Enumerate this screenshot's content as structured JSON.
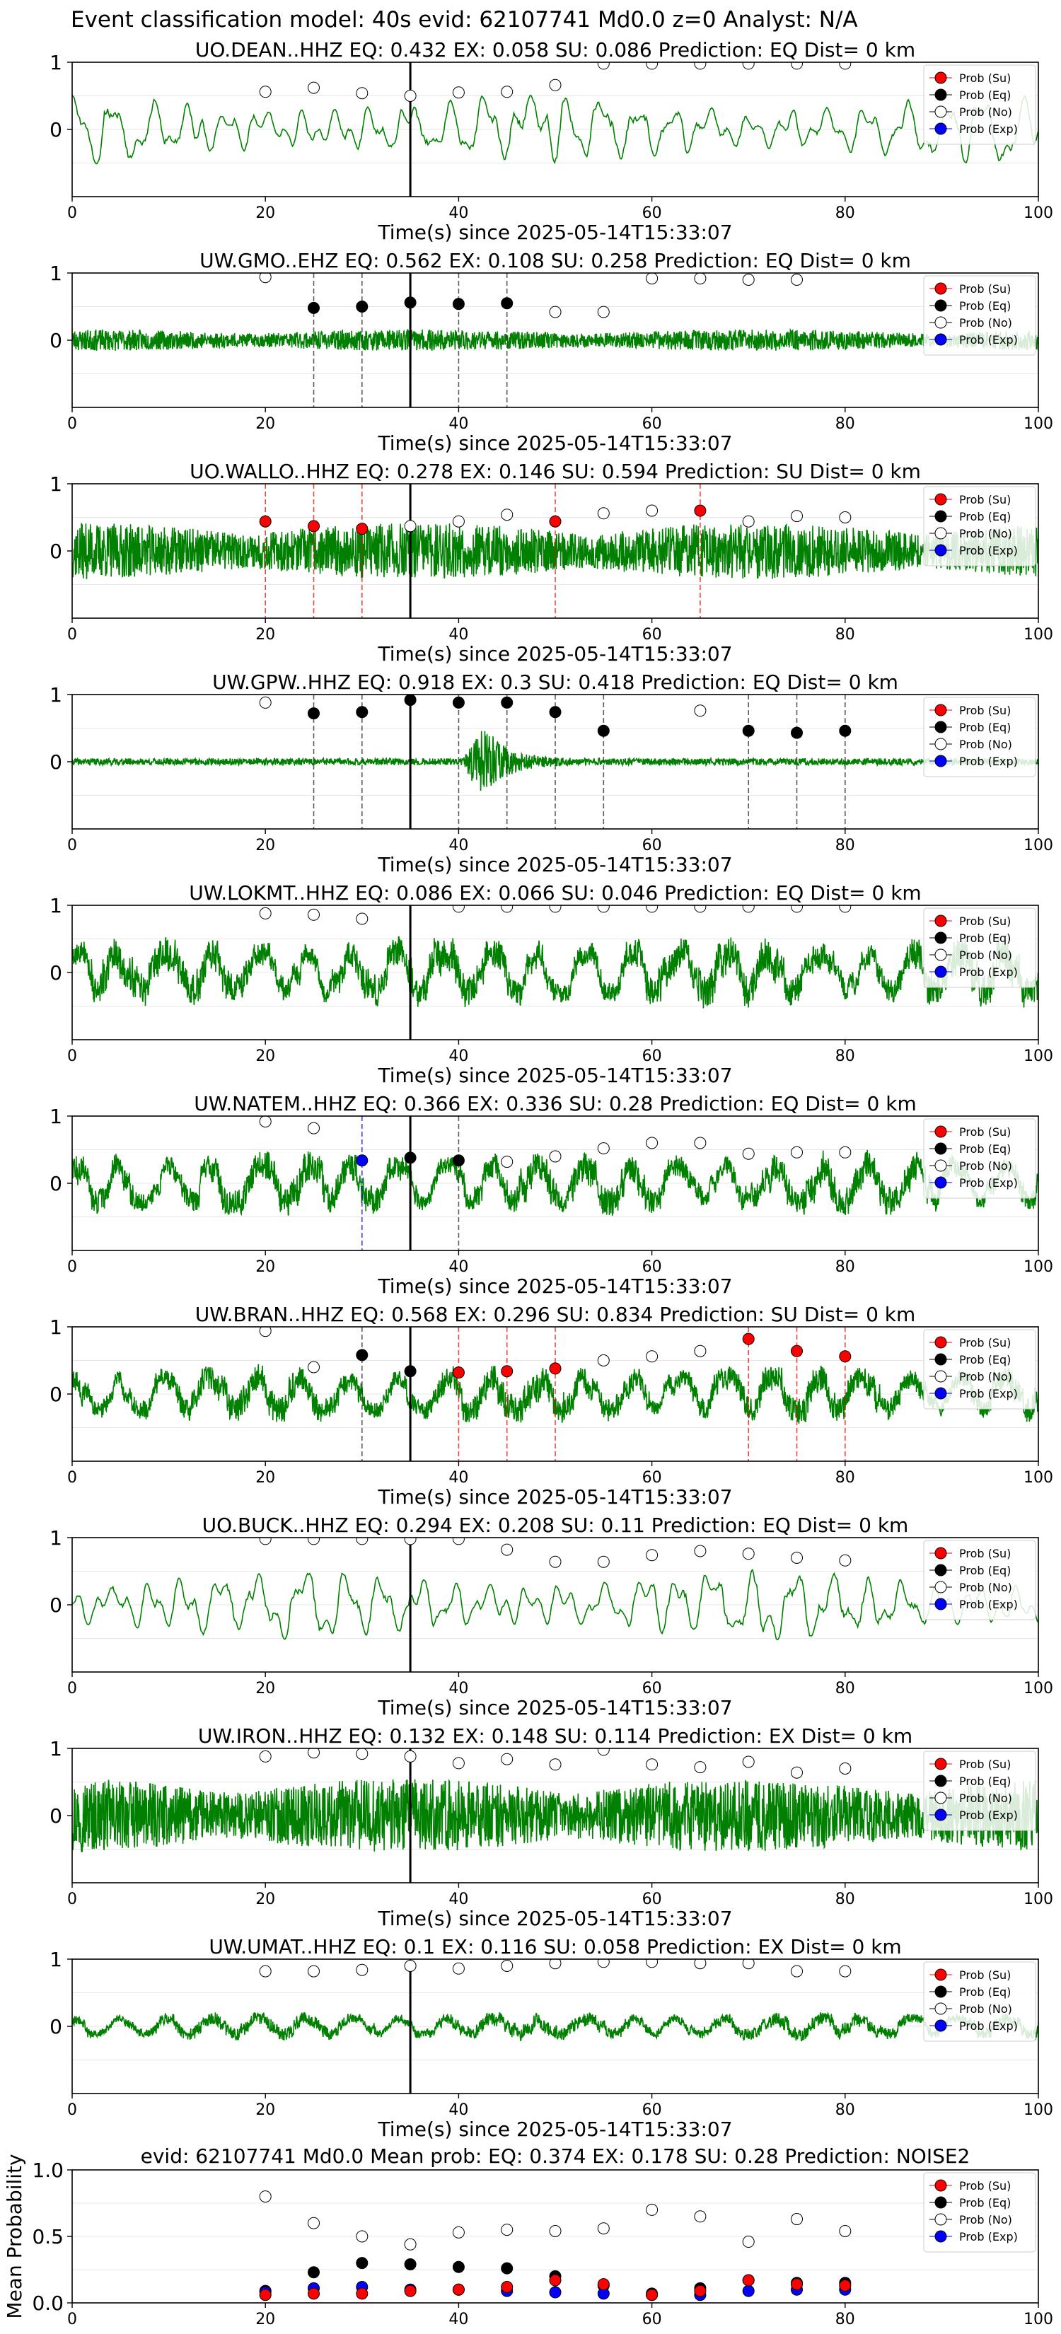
{
  "figure_title": "Event classification model: 40s evid: 62107741 Md0.0 z=0 Analyst: N/A",
  "legend_labels": [
    "Prob (Su)",
    "Prob (Eq)",
    "Prob (No)",
    "Prob (Exp)"
  ],
  "colors": {
    "waveform": "#008000",
    "su": "#ff0000",
    "eq": "#000000",
    "no": "#ffffff",
    "exp": "#0000ff",
    "pick_line": "#000000",
    "frame": "#000000"
  },
  "chart_data": [
    {
      "type": "line",
      "title": "UO.DEAN..HHZ   EQ: 0.432  EX: 0.058  SU: 0.086   Prediction: EQ    Dist= 0 km",
      "xlabel": "Time(s) since 2025-05-14T15:33:07",
      "xlim": [
        0,
        100
      ],
      "ylim": [
        -1,
        1
      ],
      "x_ticks": [
        "0",
        "20",
        "40",
        "60",
        "80",
        "100"
      ],
      "y_ticks": [
        "0",
        "1"
      ],
      "pick_time": 35,
      "waveform": {
        "style": "smooth",
        "amplitude": 0.55,
        "seed": 11
      },
      "windows_x": [
        20,
        25,
        30,
        35,
        40,
        45,
        50,
        55,
        60,
        65,
        70,
        75,
        80
      ],
      "dominant": [
        "no",
        "no",
        "no",
        "no",
        "no",
        "no",
        "no",
        "no",
        "no",
        "no",
        "no",
        "no",
        "no"
      ],
      "marker_y": [
        0.56,
        0.62,
        0.54,
        0.5,
        0.55,
        0.56,
        0.66,
        0.98,
        0.98,
        0.98,
        0.98,
        0.98,
        0.98
      ],
      "dashed": []
    },
    {
      "type": "line",
      "title": "UW.GMO..EHZ   EQ: 0.562  EX: 0.108  SU: 0.258   Prediction: EQ    Dist= 0 km",
      "xlabel": "Time(s) since 2025-05-14T15:33:07",
      "xlim": [
        0,
        100
      ],
      "ylim": [
        -1,
        1
      ],
      "x_ticks": [
        "0",
        "20",
        "40",
        "60",
        "80",
        "100"
      ],
      "y_ticks": [
        "0",
        "1"
      ],
      "pick_time": 35,
      "waveform": {
        "style": "noise",
        "amplitude": 0.16,
        "seed": 23
      },
      "windows_x": [
        20,
        25,
        30,
        35,
        40,
        45,
        50,
        55,
        60,
        65,
        70,
        75
      ],
      "dominant": [
        "no",
        "eq",
        "eq",
        "eq",
        "eq",
        "eq",
        "no",
        "no",
        "no",
        "no",
        "no",
        "no"
      ],
      "marker_y": [
        0.94,
        0.48,
        0.5,
        0.56,
        0.54,
        0.55,
        0.42,
        0.42,
        0.92,
        0.92,
        0.9,
        0.9
      ],
      "dashed": [
        {
          "x": 25,
          "type": "eq"
        },
        {
          "x": 30,
          "type": "eq"
        },
        {
          "x": 40,
          "type": "eq"
        },
        {
          "x": 45,
          "type": "eq"
        }
      ]
    },
    {
      "type": "line",
      "title": "UO.WALLO..HHZ   EQ: 0.278  EX: 0.146  SU: 0.594   Prediction: SU    Dist= 0 km",
      "xlabel": "Time(s) since 2025-05-14T15:33:07",
      "xlim": [
        0,
        100
      ],
      "ylim": [
        -1,
        1
      ],
      "x_ticks": [
        "0",
        "20",
        "40",
        "60",
        "80",
        "100"
      ],
      "y_ticks": [
        "0",
        "1"
      ],
      "pick_time": 35,
      "waveform": {
        "style": "noise",
        "amplitude": 0.42,
        "seed": 37
      },
      "windows_x": [
        20,
        25,
        30,
        35,
        40,
        45,
        50,
        55,
        60,
        65,
        70,
        75,
        80
      ],
      "dominant": [
        "su",
        "su",
        "su",
        "no",
        "no",
        "no",
        "su",
        "no",
        "no",
        "su",
        "no",
        "no",
        "no"
      ],
      "marker_y": [
        0.44,
        0.37,
        0.33,
        0.37,
        0.44,
        0.54,
        0.44,
        0.56,
        0.6,
        0.6,
        0.44,
        0.52,
        0.5
      ],
      "dashed": [
        {
          "x": 20,
          "type": "su"
        },
        {
          "x": 25,
          "type": "su"
        },
        {
          "x": 30,
          "type": "su"
        },
        {
          "x": 50,
          "type": "su"
        },
        {
          "x": 65,
          "type": "su"
        }
      ]
    },
    {
      "type": "line",
      "title": "UW.GPW..HHZ   EQ: 0.918  EX: 0.3  SU: 0.418   Prediction: EQ    Dist= 0 km",
      "xlabel": "Time(s) since 2025-05-14T15:33:07",
      "xlim": [
        0,
        100
      ],
      "ylim": [
        -1,
        1
      ],
      "x_ticks": [
        "0",
        "20",
        "40",
        "60",
        "80",
        "100"
      ],
      "y_ticks": [
        "0",
        "1"
      ],
      "pick_time": 35,
      "waveform": {
        "style": "burst",
        "amplitude": 0.05,
        "seed": 41,
        "burst_x": 42.5,
        "burst_amp": 0.55
      },
      "windows_x": [
        20,
        25,
        30,
        35,
        40,
        45,
        50,
        55,
        65,
        70,
        75,
        80
      ],
      "dominant": [
        "no",
        "eq",
        "eq",
        "eq",
        "eq",
        "eq",
        "eq",
        "eq",
        "no",
        "eq",
        "eq",
        "eq"
      ],
      "marker_y": [
        0.88,
        0.72,
        0.74,
        0.92,
        0.88,
        0.88,
        0.74,
        0.46,
        0.76,
        0.46,
        0.43,
        0.46
      ],
      "dashed": [
        {
          "x": 25,
          "type": "eq"
        },
        {
          "x": 30,
          "type": "eq"
        },
        {
          "x": 40,
          "type": "eq"
        },
        {
          "x": 45,
          "type": "eq"
        },
        {
          "x": 50,
          "type": "eq"
        },
        {
          "x": 55,
          "type": "eq"
        },
        {
          "x": 70,
          "type": "eq"
        },
        {
          "x": 75,
          "type": "eq"
        },
        {
          "x": 80,
          "type": "eq"
        }
      ]
    },
    {
      "type": "line",
      "title": "UW.LOKMT..HHZ   EQ: 0.086  EX: 0.066  SU: 0.046   Prediction: EQ    Dist= 0 km",
      "xlabel": "Time(s) since 2025-05-14T15:33:07",
      "xlim": [
        0,
        100
      ],
      "ylim": [
        -1,
        1
      ],
      "x_ticks": [
        "0",
        "20",
        "40",
        "60",
        "80",
        "100"
      ],
      "y_ticks": [
        "0",
        "1"
      ],
      "pick_time": 35,
      "waveform": {
        "style": "mixed",
        "amplitude": 0.55,
        "seed": 53
      },
      "windows_x": [
        20,
        25,
        30,
        40,
        45,
        50,
        55,
        60,
        65,
        70,
        75,
        80
      ],
      "dominant": [
        "no",
        "no",
        "no",
        "no",
        "no",
        "no",
        "no",
        "no",
        "no",
        "no",
        "no",
        "no"
      ],
      "marker_y": [
        0.88,
        0.86,
        0.8,
        0.98,
        0.98,
        0.98,
        0.98,
        0.98,
        0.98,
        0.98,
        0.98,
        0.98
      ],
      "dashed": []
    },
    {
      "type": "line",
      "title": "UW.NATEM..HHZ   EQ: 0.366  EX: 0.336  SU: 0.28   Prediction: EQ    Dist= 0 km",
      "xlabel": "Time(s) since 2025-05-14T15:33:07",
      "xlim": [
        0,
        100
      ],
      "ylim": [
        -1,
        1
      ],
      "x_ticks": [
        "0",
        "20",
        "40",
        "60",
        "80",
        "100"
      ],
      "y_ticks": [
        "0",
        "1"
      ],
      "pick_time": 35,
      "waveform": {
        "style": "mixed",
        "amplitude": 0.5,
        "seed": 67
      },
      "windows_x": [
        20,
        25,
        30,
        35,
        40,
        45,
        50,
        55,
        60,
        65,
        70,
        75,
        80
      ],
      "dominant": [
        "no",
        "no",
        "exp",
        "eq",
        "eq",
        "no",
        "no",
        "no",
        "no",
        "no",
        "no",
        "no",
        "no"
      ],
      "marker_y": [
        0.92,
        0.82,
        0.34,
        0.38,
        0.34,
        0.32,
        0.4,
        0.52,
        0.6,
        0.6,
        0.44,
        0.46,
        0.46
      ],
      "dashed": [
        {
          "x": 30,
          "type": "exp"
        },
        {
          "x": 40,
          "type": "eq"
        }
      ]
    },
    {
      "type": "line",
      "title": "UW.BRAN..HHZ   EQ: 0.568  EX: 0.296  SU: 0.834   Prediction: SU    Dist= 0 km",
      "xlabel": "Time(s) since 2025-05-14T15:33:07",
      "xlim": [
        0,
        100
      ],
      "ylim": [
        -1,
        1
      ],
      "x_ticks": [
        "0",
        "20",
        "40",
        "60",
        "80",
        "100"
      ],
      "y_ticks": [
        "0",
        "1"
      ],
      "pick_time": 35,
      "waveform": {
        "style": "mixed",
        "amplitude": 0.45,
        "seed": 79
      },
      "windows_x": [
        20,
        25,
        30,
        35,
        40,
        45,
        50,
        55,
        60,
        65,
        70,
        75,
        80
      ],
      "dominant": [
        "no",
        "no",
        "eq",
        "eq",
        "su",
        "su",
        "su",
        "no",
        "no",
        "no",
        "su",
        "su",
        "su"
      ],
      "marker_y": [
        0.94,
        0.4,
        0.58,
        0.34,
        0.32,
        0.34,
        0.38,
        0.5,
        0.56,
        0.64,
        0.82,
        0.64,
        0.56
      ],
      "dashed": [
        {
          "x": 30,
          "type": "eq"
        },
        {
          "x": 40,
          "type": "su"
        },
        {
          "x": 45,
          "type": "su"
        },
        {
          "x": 50,
          "type": "su"
        },
        {
          "x": 70,
          "type": "su"
        },
        {
          "x": 75,
          "type": "su"
        },
        {
          "x": 80,
          "type": "su"
        }
      ]
    },
    {
      "type": "line",
      "title": "UO.BUCK..HHZ   EQ: 0.294  EX: 0.208  SU: 0.11   Prediction: EQ    Dist= 0 km",
      "xlabel": "Time(s) since 2025-05-14T15:33:07",
      "xlim": [
        0,
        100
      ],
      "ylim": [
        -1,
        1
      ],
      "x_ticks": [
        "0",
        "20",
        "40",
        "60",
        "80",
        "100"
      ],
      "y_ticks": [
        "0",
        "1"
      ],
      "pick_time": 35,
      "waveform": {
        "style": "smooth",
        "amplitude": 0.55,
        "seed": 83
      },
      "windows_x": [
        20,
        25,
        30,
        35,
        40,
        45,
        50,
        55,
        60,
        65,
        70,
        75,
        80
      ],
      "dominant": [
        "no",
        "no",
        "no",
        "no",
        "no",
        "no",
        "no",
        "no",
        "no",
        "no",
        "no",
        "no",
        "no"
      ],
      "marker_y": [
        0.98,
        0.98,
        0.98,
        0.98,
        0.98,
        0.82,
        0.64,
        0.64,
        0.74,
        0.8,
        0.76,
        0.7,
        0.66
      ],
      "dashed": []
    },
    {
      "type": "line",
      "title": "UW.IRON..HHZ   EQ: 0.132  EX: 0.148  SU: 0.114   Prediction: EX    Dist= 0 km",
      "xlabel": "Time(s) since 2025-05-14T15:33:07",
      "xlim": [
        0,
        100
      ],
      "ylim": [
        -1,
        1
      ],
      "x_ticks": [
        "0",
        "20",
        "40",
        "60",
        "80",
        "100"
      ],
      "y_ticks": [
        "0",
        "1"
      ],
      "pick_time": 35,
      "waveform": {
        "style": "noise",
        "amplitude": 0.55,
        "seed": 97
      },
      "windows_x": [
        20,
        25,
        30,
        35,
        40,
        45,
        50,
        55,
        60,
        65,
        70,
        75,
        80
      ],
      "dominant": [
        "no",
        "no",
        "no",
        "no",
        "no",
        "no",
        "no",
        "no",
        "no",
        "no",
        "no",
        "no",
        "no"
      ],
      "marker_y": [
        0.88,
        0.94,
        0.92,
        0.88,
        0.78,
        0.84,
        0.76,
        0.98,
        0.76,
        0.72,
        0.8,
        0.64,
        0.7
      ],
      "dashed": []
    },
    {
      "type": "line",
      "title": "UW.UMAT..HHZ   EQ: 0.1  EX: 0.116  SU: 0.058   Prediction: EX    Dist= 0 km",
      "xlabel": "Time(s) since 2025-05-14T15:33:07",
      "xlim": [
        0,
        100
      ],
      "ylim": [
        -1,
        1
      ],
      "x_ticks": [
        "0",
        "20",
        "40",
        "60",
        "80",
        "100"
      ],
      "y_ticks": [
        "0",
        "1"
      ],
      "pick_time": 35,
      "waveform": {
        "style": "mixed",
        "amplitude": 0.22,
        "seed": 101
      },
      "windows_x": [
        20,
        25,
        30,
        35,
        40,
        45,
        50,
        55,
        60,
        65,
        70,
        75,
        80
      ],
      "dominant": [
        "no",
        "no",
        "no",
        "no",
        "no",
        "no",
        "no",
        "no",
        "no",
        "no",
        "no",
        "no",
        "no"
      ],
      "marker_y": [
        0.82,
        0.82,
        0.84,
        0.9,
        0.86,
        0.9,
        0.94,
        0.96,
        0.96,
        0.94,
        0.94,
        0.82,
        0.82
      ],
      "dashed": []
    },
    {
      "type": "scatter",
      "title": "evid: 62107741  Md0.0   Mean prob:   EQ: 0.374  EX: 0.178  SU: 0.28   Prediction: NOISE2",
      "ylabel": "Mean Probability",
      "xlim": [
        0,
        100
      ],
      "ylim": [
        0,
        1
      ],
      "x_ticks": [
        "0",
        "20",
        "40",
        "60",
        "80",
        "100"
      ],
      "y_ticks": [
        "0.0",
        "0.5",
        "1.0"
      ],
      "x": [
        20,
        25,
        30,
        35,
        40,
        45,
        50,
        55,
        60,
        65,
        70,
        75,
        80
      ],
      "series": [
        {
          "name": "Prob (No)",
          "key": "no",
          "values": [
            0.8,
            0.6,
            0.5,
            0.44,
            0.53,
            0.55,
            0.54,
            0.56,
            0.7,
            0.65,
            0.46,
            0.63,
            0.54
          ]
        },
        {
          "name": "Prob (Eq)",
          "key": "eq",
          "values": [
            0.09,
            0.23,
            0.3,
            0.29,
            0.27,
            0.26,
            0.2,
            0.13,
            0.07,
            0.11,
            0.17,
            0.15,
            0.15
          ]
        },
        {
          "name": "Prob (Exp)",
          "key": "exp",
          "values": [
            0.08,
            0.11,
            0.12,
            0.1,
            0.1,
            0.09,
            0.08,
            0.07,
            0.06,
            0.06,
            0.09,
            0.1,
            0.1
          ]
        },
        {
          "name": "Prob (Su)",
          "key": "su",
          "values": [
            0.06,
            0.07,
            0.07,
            0.09,
            0.1,
            0.12,
            0.17,
            0.14,
            0.06,
            0.09,
            0.17,
            0.14,
            0.13
          ]
        }
      ]
    }
  ]
}
